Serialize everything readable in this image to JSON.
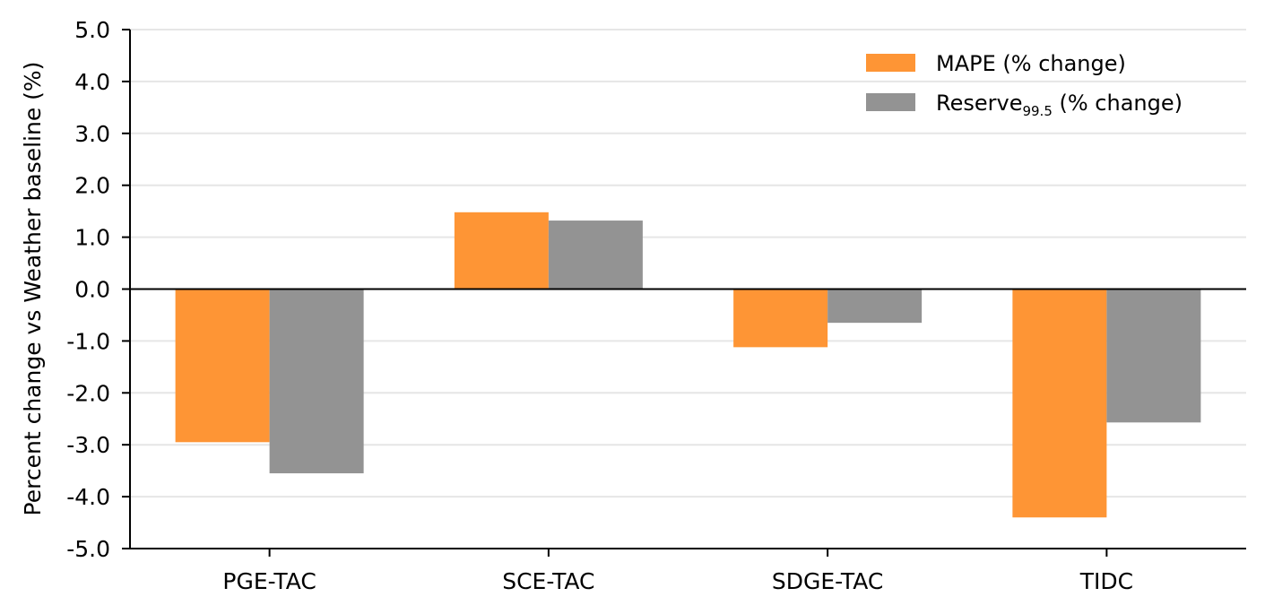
{
  "chart_data": {
    "type": "bar",
    "title": "",
    "xlabel": "",
    "ylabel": "Percent change vs Weather baseline (%)",
    "ylim": [
      -5.0,
      5.0
    ],
    "yticks": [
      "-5.0",
      "-4.0",
      "-3.0",
      "-2.0",
      "-1.0",
      "0.0",
      "1.0",
      "2.0",
      "3.0",
      "4.0",
      "5.0"
    ],
    "grid": "horizontal",
    "legend_position": "top-right",
    "categories": [
      "PGE-TAC",
      "SCE-TAC",
      "SDGE-TAC",
      "TIDC"
    ],
    "series": [
      {
        "name": "MAPE (% change)",
        "color": "#fe9535",
        "values": [
          -2.95,
          1.48,
          -1.12,
          -4.4
        ]
      },
      {
        "name": "Reserve",
        "name_subscript": "99.5",
        "name_suffix": " (% change)",
        "color": "#939393",
        "values": [
          -3.55,
          1.32,
          -0.65,
          -2.57
        ]
      }
    ]
  }
}
